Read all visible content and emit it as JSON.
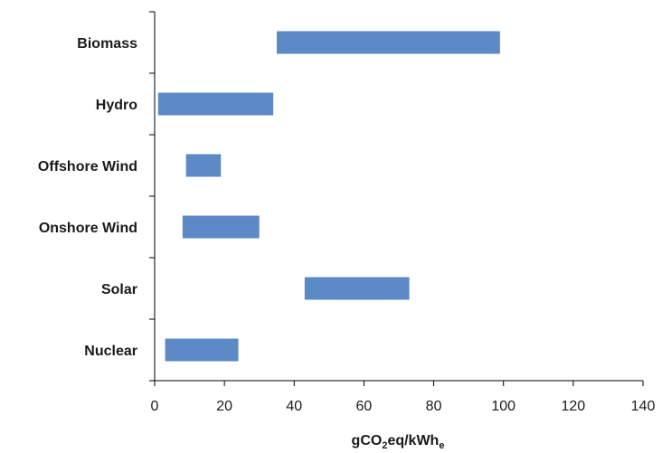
{
  "chart_data": {
    "type": "bar",
    "orientation": "horizontal",
    "categories": [
      "Biomass",
      "Hydro",
      "Offshore Wind",
      "Onshore Wind",
      "Solar",
      "Nuclear"
    ],
    "ranges": [
      {
        "low": 35,
        "high": 99
      },
      {
        "low": 1,
        "high": 34
      },
      {
        "low": 9,
        "high": 19
      },
      {
        "low": 8,
        "high": 30
      },
      {
        "low": 43,
        "high": 73
      },
      {
        "low": 3,
        "high": 24
      }
    ],
    "xticks": [
      0,
      20,
      40,
      60,
      80,
      100,
      120,
      140
    ],
    "xlim": [
      0,
      140
    ],
    "xlabel": {
      "g": "g",
      "co": "CO",
      "sub2": "2",
      "mid": "eq/kWh",
      "sube": "e"
    },
    "grid": false,
    "legend": "none",
    "bar_color": "#5B8AC6",
    "axis_color": "#000000"
  }
}
